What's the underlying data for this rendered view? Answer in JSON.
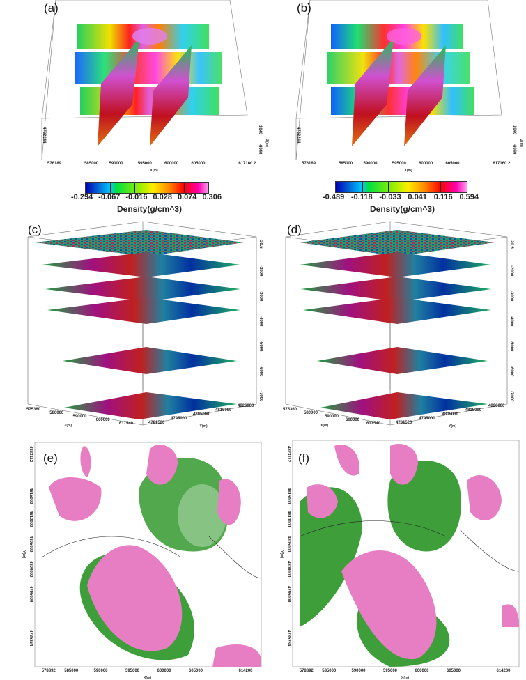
{
  "panels": {
    "a": {
      "label": "(a)",
      "x_ticks": [
        "576189",
        "585000",
        "590000",
        "595000",
        "600000",
        "605000",
        "617160.2"
      ],
      "x_title": "X(m)",
      "y_start": "4782244",
      "z_ticks": [
        "1040",
        "-8040"
      ],
      "z_title": "Z(m)",
      "colorbar": {
        "ticks": [
          "-0.294",
          "-0.067",
          "-0.016",
          "0.028",
          "0.074",
          "0.306"
        ],
        "title": "Density(g/cm^3)"
      }
    },
    "b": {
      "label": "(b)",
      "x_ticks": [
        "576189",
        "585000",
        "590000",
        "595000",
        "600000",
        "605000",
        "617160.2"
      ],
      "x_title": "X(m)",
      "y_start": "4782244",
      "z_ticks": [
        "1040",
        "-8040"
      ],
      "z_title": "Z(m)",
      "colorbar": {
        "ticks": [
          "-0.489",
          "-0.118",
          "-0.033",
          "0.041",
          "0.116",
          "0.594"
        ],
        "title": "Density(g/cm^3)"
      }
    },
    "c": {
      "label": "(c)",
      "x_ticks": [
        "575360",
        "580000",
        "590000",
        "600000",
        "617540"
      ],
      "x_title": "X(m)",
      "y_ticks": [
        "4781520",
        "4795000",
        "4805000",
        "4815000",
        "4826000"
      ],
      "y_title": "Y(m)",
      "z_ticks": [
        "20.5",
        "-2000",
        "-3000",
        "-4000",
        "-5000",
        "-6000",
        "-7000"
      ]
    },
    "d": {
      "label": "(d)",
      "x_ticks": [
        "575360",
        "580000",
        "590000",
        "600000",
        "617540"
      ],
      "x_title": "X(m)",
      "y_ticks": [
        "4781520",
        "4795000",
        "4805000",
        "4815000",
        "4826000"
      ],
      "y_title": "Y(m)",
      "z_ticks": [
        "20.5",
        "-2000",
        "-3000",
        "-4000",
        "-5000",
        "-6000",
        "-7000"
      ]
    },
    "e": {
      "label": "(e)",
      "x_ticks": [
        "578892",
        "585000",
        "590000",
        "595000",
        "600000",
        "605000",
        "614200"
      ],
      "x_title": "X(m)",
      "y_ticks": [
        "4823112",
        "4815000",
        "4810000",
        "4805000",
        "4800000",
        "4795000",
        "4785264"
      ],
      "y_title": "Y(m)"
    },
    "f": {
      "label": "(f)",
      "x_ticks": [
        "578892",
        "585000",
        "590000",
        "595000",
        "600000",
        "605000",
        "614200"
      ],
      "x_title": "X(m)",
      "y_ticks": [
        "4823112",
        "4815000",
        "4810000",
        "4805000",
        "4800000",
        "4795000",
        "4785264"
      ],
      "y_title": "Y(m)"
    }
  },
  "colors": {
    "positive": "#e77ec4",
    "negative": "#3e9e3a"
  }
}
